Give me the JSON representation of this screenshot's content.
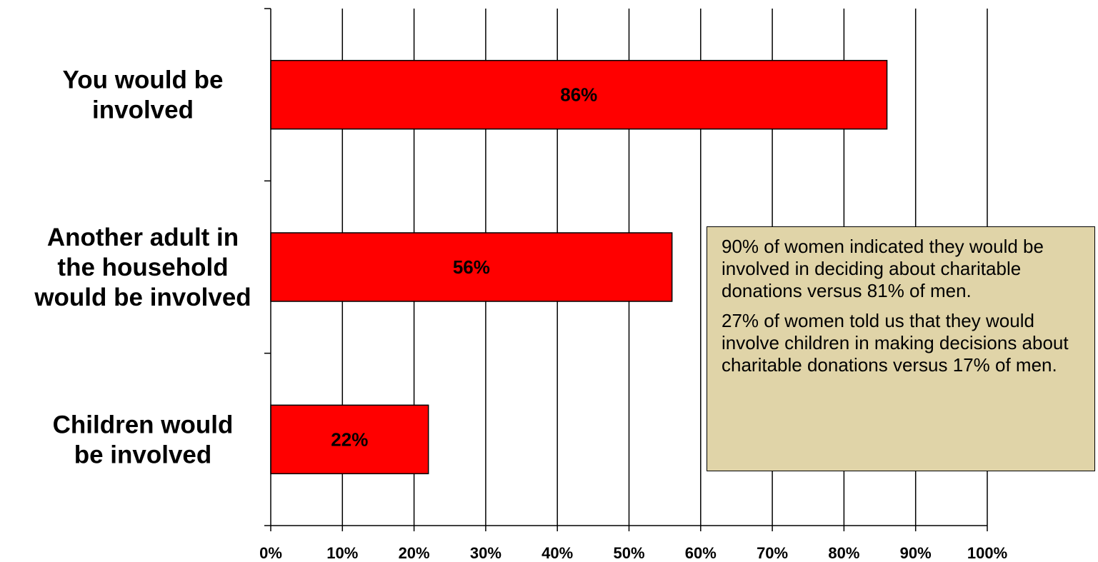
{
  "chart_data": {
    "type": "bar",
    "orientation": "horizontal",
    "categories": [
      [
        "You would be",
        "involved"
      ],
      [
        "Another adult in",
        "the household",
        "would be involved"
      ],
      [
        "Children would",
        "be involved"
      ]
    ],
    "values": [
      86,
      56,
      22
    ],
    "data_labels": [
      "86%",
      "56%",
      "22%"
    ],
    "xlim": [
      0,
      100
    ],
    "x_ticks": [
      0,
      10,
      20,
      30,
      40,
      50,
      60,
      70,
      80,
      90,
      100
    ],
    "x_tick_labels": [
      "0%",
      "10%",
      "20%",
      "30%",
      "40%",
      "50%",
      "60%",
      "70%",
      "80%",
      "90%",
      "100%"
    ],
    "grid": "vertical",
    "bar_color": "#ff0000",
    "title": "",
    "xlabel": "",
    "ylabel": ""
  },
  "annotation": {
    "background": "#e0d4a8",
    "paragraphs": [
      "90% of women indicated they would be involved in deciding about charitable donations versus 81% of men.",
      "27% of women told us that they would involve children in making decisions about charitable donations versus 17% of men."
    ]
  }
}
